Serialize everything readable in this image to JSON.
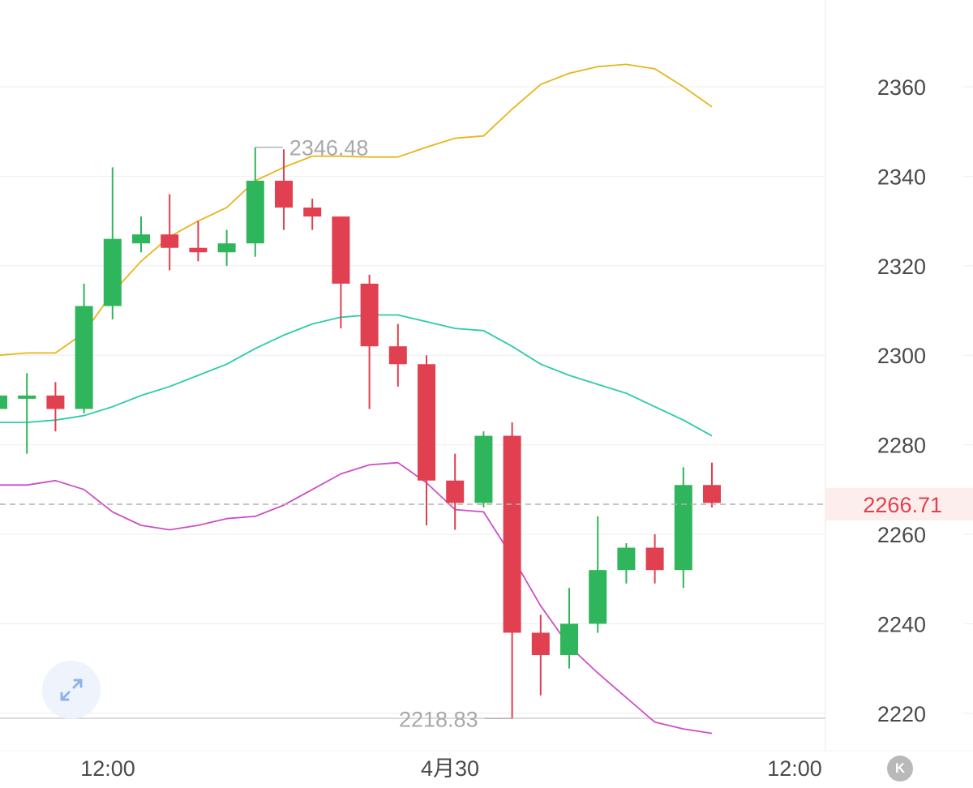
{
  "chart_data": {
    "type": "candlestick",
    "y_ticks": [
      "2360",
      "2340",
      "2320",
      "2300",
      "2280",
      "2260",
      "2240",
      "2220"
    ],
    "x_ticks": [
      "12:00",
      "4月30",
      "12:00"
    ],
    "ylim": [
      2210,
      2380
    ],
    "last_price": "2266.71",
    "annotations": {
      "high": "2346.48",
      "low": "2218.83"
    },
    "colors": {
      "up": "#2fb55b",
      "down": "#e0404f",
      "upper_band": "#e7b51a",
      "middle_band": "#2ccbaa",
      "lower_band": "#cc4fc6",
      "grid": "#eeeeee",
      "last_price_line": "#b0b0b0"
    },
    "candles": [
      {
        "o": 2288,
        "h": 2292,
        "l": 2286,
        "c": 2291
      },
      {
        "o": 2291,
        "h": 2296,
        "l": 2278,
        "c": 2291
      },
      {
        "o": 2291,
        "h": 2294,
        "l": 2283,
        "c": 2288
      },
      {
        "o": 2288,
        "h": 2316,
        "l": 2287,
        "c": 2311
      },
      {
        "o": 2311,
        "h": 2342,
        "l": 2308,
        "c": 2326
      },
      {
        "o": 2325,
        "h": 2331,
        "l": 2323,
        "c": 2327
      },
      {
        "o": 2327,
        "h": 2336,
        "l": 2319,
        "c": 2324
      },
      {
        "o": 2324,
        "h": 2330,
        "l": 2321,
        "c": 2323
      },
      {
        "o": 2323,
        "h": 2328,
        "l": 2320,
        "c": 2325
      },
      {
        "o": 2325,
        "h": 2346.48,
        "l": 2322,
        "c": 2339
      },
      {
        "o": 2339,
        "h": 2346,
        "l": 2328,
        "c": 2333
      },
      {
        "o": 2333,
        "h": 2335,
        "l": 2328,
        "c": 2331
      },
      {
        "o": 2331,
        "h": 2331,
        "l": 2306,
        "c": 2316
      },
      {
        "o": 2316,
        "h": 2318,
        "l": 2288,
        "c": 2302
      },
      {
        "o": 2302,
        "h": 2307,
        "l": 2293,
        "c": 2298
      },
      {
        "o": 2298,
        "h": 2300,
        "l": 2262,
        "c": 2272
      },
      {
        "o": 2272,
        "h": 2278,
        "l": 2261,
        "c": 2267
      },
      {
        "o": 2267,
        "h": 2283,
        "l": 2266,
        "c": 2282
      },
      {
        "o": 2282,
        "h": 2285,
        "l": 2218.83,
        "c": 2238
      },
      {
        "o": 2238,
        "h": 2242,
        "l": 2224,
        "c": 2233
      },
      {
        "o": 2233,
        "h": 2248,
        "l": 2230,
        "c": 2240
      },
      {
        "o": 2240,
        "h": 2264,
        "l": 2238,
        "c": 2252
      },
      {
        "o": 2252,
        "h": 2258,
        "l": 2249,
        "c": 2257
      },
      {
        "o": 2257,
        "h": 2260,
        "l": 2249,
        "c": 2252
      },
      {
        "o": 2252,
        "h": 2275,
        "l": 2248,
        "c": 2271
      },
      {
        "o": 2271,
        "h": 2276,
        "l": 2266,
        "c": 2267
      }
    ],
    "bands": {
      "upper": [
        2300,
        2300.5,
        2300.5,
        2305,
        2314,
        2321,
        2326.5,
        2330,
        2333,
        2339,
        2342,
        2344.5,
        2344.5,
        2344.3,
        2344.3,
        2346.5,
        2348.5,
        2349,
        2355,
        2360.5,
        2363,
        2364.5,
        2365,
        2364,
        2360,
        2355.5
      ],
      "middle": [
        2285,
        2285,
        2285.5,
        2286.5,
        2288.5,
        2291,
        2293,
        2295.5,
        2298,
        2301.5,
        2304.5,
        2307,
        2308.5,
        2309,
        2309,
        2307.5,
        2306,
        2305.5,
        2302,
        2298,
        2295.5,
        2293.5,
        2291.5,
        2288.5,
        2285.5,
        2282
      ],
      "lower": [
        2271,
        2271,
        2272,
        2270,
        2265,
        2262,
        2261,
        2262,
        2263.5,
        2264,
        2266.5,
        2270,
        2273.5,
        2275.5,
        2276,
        2271.5,
        2265.5,
        2265,
        2255,
        2244,
        2235,
        2229,
        2223.5,
        2218,
        2216.5,
        2215.5
      ]
    }
  },
  "controls": {
    "reset_label": "K"
  },
  "icons": {
    "expand": "expand-arrows-icon"
  }
}
